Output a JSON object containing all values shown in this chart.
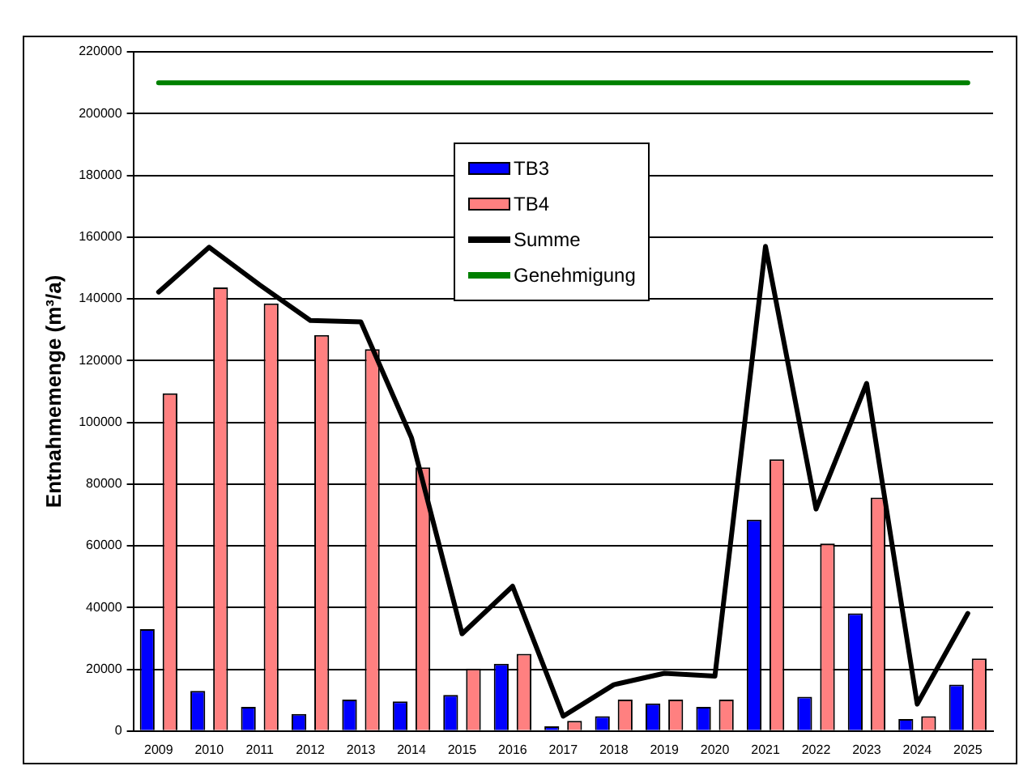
{
  "chart_data": {
    "type": "bar",
    "ylabel": "Entnahmemenge (m³/a)",
    "categories": [
      "2009",
      "2010",
      "2011",
      "2012",
      "2013",
      "2014",
      "2015",
      "2016",
      "2017",
      "2018",
      "2019",
      "2020",
      "2021",
      "2022",
      "2023",
      "2024",
      "2025"
    ],
    "series": [
      {
        "name": "TB3",
        "color": "#0000ff",
        "values": [
          33000,
          13000,
          7800,
          5500,
          10200,
          9600,
          11700,
          21800,
          1500,
          4800,
          8900,
          7800,
          68500,
          11100,
          38100,
          3900,
          15000
        ]
      },
      {
        "name": "TB4",
        "color": "#ff8080",
        "values": [
          109400,
          143700,
          138500,
          128300,
          123700,
          85400,
          20200,
          25000,
          3300,
          10200,
          10200,
          10200,
          88000,
          60700,
          75600,
          4800,
          23500
        ]
      },
      {
        "name": "Summe",
        "type": "line",
        "color": "#000000",
        "values": [
          142200,
          156700,
          144500,
          133000,
          132500,
          95000,
          31500,
          46900,
          4800,
          15000,
          18700,
          17800,
          157000,
          71900,
          112600,
          8700,
          38100
        ]
      },
      {
        "name": "Genehmigung",
        "type": "line",
        "color": "#008000",
        "values": [
          210000,
          210000,
          210000,
          210000,
          210000,
          210000,
          210000,
          210000,
          210000,
          210000,
          210000,
          210000,
          210000,
          210000,
          210000,
          210000,
          210000
        ]
      }
    ],
    "ylim": [
      0,
      220000
    ],
    "yticks": [
      0,
      20000,
      40000,
      60000,
      80000,
      100000,
      120000,
      140000,
      160000,
      180000,
      200000,
      220000
    ],
    "grid": "y",
    "legend": "top",
    "marker": "none"
  }
}
